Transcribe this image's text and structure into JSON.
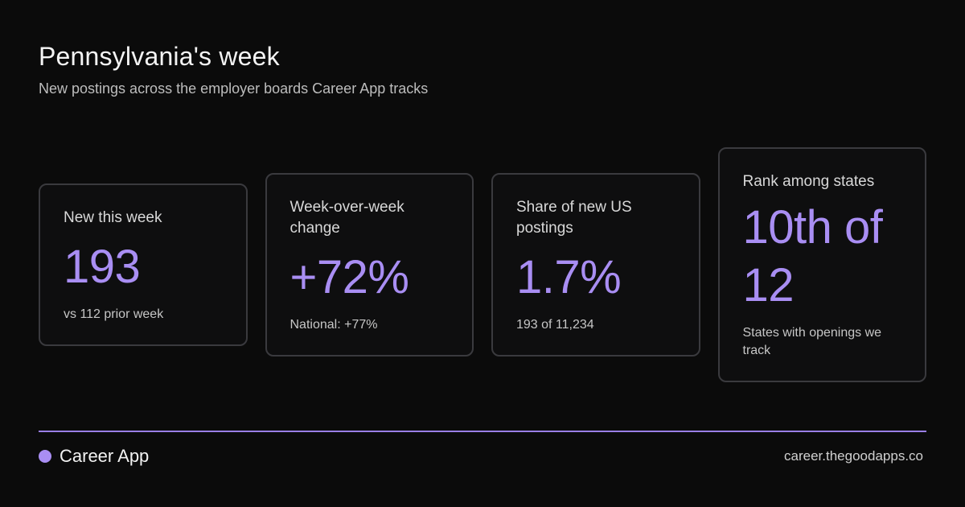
{
  "header": {
    "title": "Pennsylvania's week",
    "subtitle": "New postings across the employer boards Career App tracks"
  },
  "cards": [
    {
      "label": "New this week",
      "value": "193",
      "note": "vs 112 prior week"
    },
    {
      "label": "Week-over-week change",
      "value": "+72%",
      "note": "National: +77%"
    },
    {
      "label": "Share of new US postings",
      "value": "1.7%",
      "note": "193 of 11,234"
    },
    {
      "label": "Rank among states",
      "value": "10th of 12",
      "note": "States with openings we track"
    }
  ],
  "footer": {
    "brand": "Career App",
    "url": "career.thegoodapps.co"
  },
  "colors": {
    "accent": "#a98ef3",
    "background": "#0b0b0b",
    "card_border": "#3a3a3e"
  }
}
